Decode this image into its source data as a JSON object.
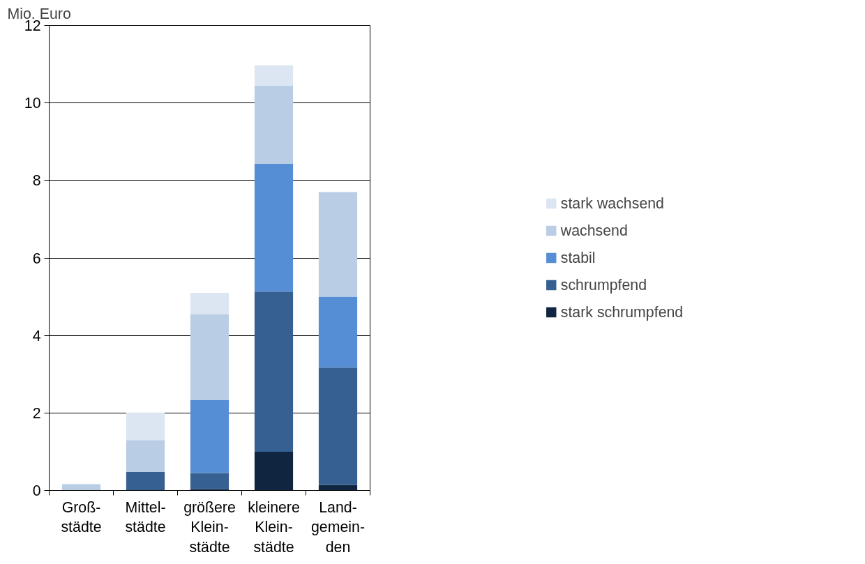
{
  "chart_data": {
    "type": "bar",
    "stacked": true,
    "ylabel": "Mio. Euro",
    "categories": [
      "Groß-\nstädte",
      "Mittel-\nstädte",
      "größere\nKlein-\nstädte",
      "kleinere\nKlein-\nstädte",
      "Land-\ngemein-\nden"
    ],
    "series": [
      {
        "name": "stark schrumpfend",
        "color": "#10253f",
        "values": [
          null,
          null,
          0.03,
          1.0,
          0.14
        ]
      },
      {
        "name": "schrumpfend",
        "color": "#376092",
        "values": [
          null,
          0.48,
          0.42,
          4.13,
          3.03
        ]
      },
      {
        "name": "stabil",
        "color": "#558ed5",
        "values": [
          null,
          null,
          1.88,
          3.3,
          1.83
        ]
      },
      {
        "name": "wachsend",
        "color": "#b9cde5",
        "values": [
          0.16,
          0.82,
          2.22,
          2.02,
          2.7
        ]
      },
      {
        "name": "stark wachsend",
        "color": "#dce6f2",
        "values": [
          null,
          0.71,
          0.55,
          0.52,
          null
        ]
      }
    ],
    "ylim": [
      0,
      12
    ],
    "yticks": [
      0,
      2,
      4,
      6,
      8,
      10,
      12
    ],
    "grid": "y",
    "legend": "right"
  }
}
